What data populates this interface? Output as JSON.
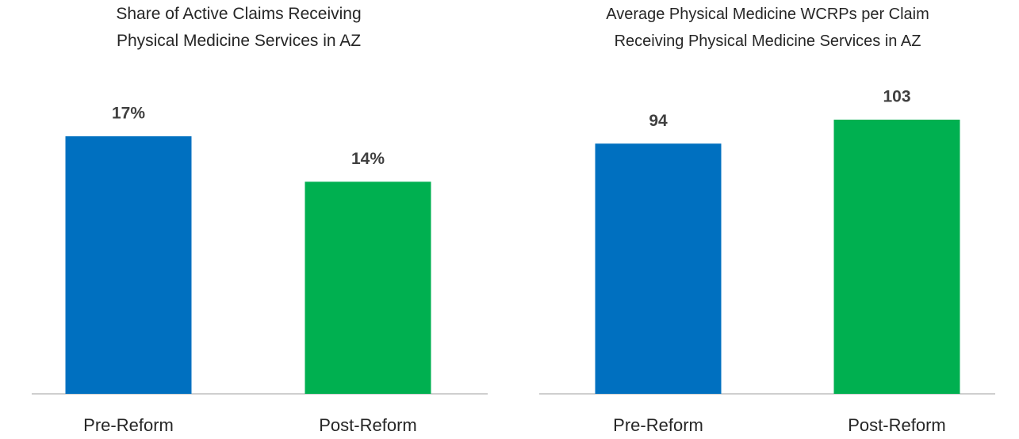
{
  "chart_data": [
    {
      "type": "bar",
      "title": "Share of Active Claims Receiving Physical Medicine Services in AZ",
      "categories": [
        "Pre-Reform",
        "Post-Reform"
      ],
      "values": [
        17,
        14
      ],
      "value_labels": [
        "17%",
        "14%"
      ],
      "colors": [
        "#0070c0",
        "#00b050"
      ]
    },
    {
      "type": "bar",
      "title": "Average Physical Medicine WCRPs per Claim Receiving Physical Medicine Services in AZ",
      "categories": [
        "Pre-Reform",
        "Post-Reform"
      ],
      "values": [
        94,
        103
      ],
      "value_labels": [
        "94",
        "103"
      ],
      "colors": [
        "#0070c0",
        "#00b050"
      ]
    }
  ]
}
